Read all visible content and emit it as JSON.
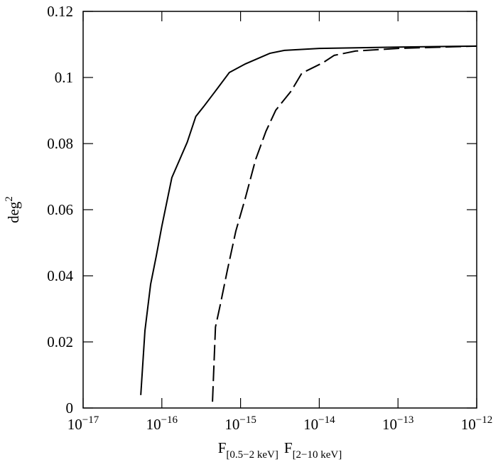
{
  "chart_data": {
    "type": "line",
    "xlabel": [
      {
        "main": "F",
        "sub": "[0.5−2 keV]"
      },
      {
        "main": "F",
        "sub": "[2−10 keV]"
      }
    ],
    "ylabel": {
      "main": "deg",
      "sup": "2"
    },
    "xscale": "log",
    "xlim": [
      1e-17,
      1e-12
    ],
    "xticks": [
      {
        "value": 1e-17,
        "label": "10",
        "exponent": "−17"
      },
      {
        "value": 1e-16,
        "label": "10",
        "exponent": "−16"
      },
      {
        "value": 1e-15,
        "label": "10",
        "exponent": "−15"
      },
      {
        "value": 1e-14,
        "label": "10",
        "exponent": "−14"
      },
      {
        "value": 1e-13,
        "label": "10",
        "exponent": "−13"
      },
      {
        "value": 1e-12,
        "label": "10",
        "exponent": "−12"
      }
    ],
    "ylim": [
      0,
      0.12
    ],
    "yticks": [
      0,
      0.02,
      0.04,
      0.06,
      0.08,
      0.1,
      0.12
    ],
    "series": [
      {
        "color": "#000000",
        "dash": false,
        "x": [
          5.4e-17,
          6.1e-17,
          7.2e-17,
          8.5e-17,
          1e-16,
          1.34e-16,
          2.1e-16,
          2.7e-16,
          3.4e-16,
          4.8e-16,
          7.2e-16,
          1.15e-15,
          2.35e-15,
          3.6e-15,
          1e-14,
          1e-13,
          1e-12
        ],
        "values": [
          0.0039,
          0.0234,
          0.0374,
          0.046,
          0.055,
          0.0697,
          0.0804,
          0.0882,
          0.0912,
          0.0959,
          0.1015,
          0.1041,
          0.1073,
          0.1082,
          0.1088,
          0.1092,
          0.1095
        ]
      },
      {
        "color": "#000000",
        "dash": true,
        "x": [
          4.4e-16,
          4.8e-16,
          5.5e-16,
          6.8e-16,
          8.7e-16,
          1.14e-15,
          1.55e-15,
          2.1e-15,
          2.8e-15,
          4.4e-15,
          6e-15,
          1.12e-14,
          1.55e-14,
          2.9e-14,
          1e-13,
          1e-12
        ],
        "values": [
          0.0019,
          0.0245,
          0.031,
          0.0417,
          0.0535,
          0.0632,
          0.0751,
          0.0837,
          0.0901,
          0.0959,
          0.1013,
          0.1045,
          0.1067,
          0.108,
          0.1088,
          0.1095
        ]
      }
    ]
  }
}
